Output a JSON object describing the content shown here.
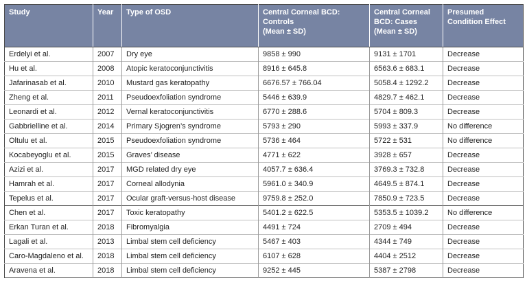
{
  "table": {
    "headers": {
      "study": "Study",
      "year": "Year",
      "type": "Type of OSD",
      "controls_l1": "Central Corneal BCD:",
      "controls_l2": "Controls",
      "controls_l3": "(Mean ± SD)",
      "cases_l1": "Central Corneal",
      "cases_l2": "BCD: Cases",
      "cases_l3": "(Mean ± SD)",
      "effect_l1": "Presumed",
      "effect_l2": "Condition Effect"
    },
    "rows": [
      {
        "study": "Erdelyi et al.",
        "year": "2007",
        "type": "Dry eye",
        "controls": "9858 ± 990",
        "cases": "9131 ± 1701",
        "effect": "Decrease"
      },
      {
        "study": "Hu et al.",
        "year": "2008",
        "type": "Atopic keratoconjunctivitis",
        "controls": "8916 ± 645.8",
        "cases": "6563.6 ± 683.1",
        "effect": "Decrease"
      },
      {
        "study": "Jafarinasab et al.",
        "year": "2010",
        "type": "Mustard gas keratopathy",
        "controls": "6676.57 ± 766.04",
        "cases": "5058.4 ± 1292.2",
        "effect": "Decrease"
      },
      {
        "study": "Zheng et al.",
        "year": "2011",
        "type": "Pseudoexfoliation syndrome",
        "controls": "5446 ± 639.9",
        "cases": "4829.7 ± 462.1",
        "effect": "Decrease"
      },
      {
        "study": "Leonardi et al.",
        "year": "2012",
        "type": "Vernal keratoconjunctivitis",
        "controls": "6770 ± 288.6",
        "cases": "5704 ± 809.3",
        "effect": "Decrease"
      },
      {
        "study": "Gabbrielline et al.",
        "year": "2014",
        "type": "Primary Sjogren’s syndrome",
        "controls": "5793 ± 290",
        "cases": "5993 ± 337.9",
        "effect": "No difference"
      },
      {
        "study": "Oltulu et al.",
        "year": "2015",
        "type": "Pseudoexfoliation syndrome",
        "controls": "5736 ± 464",
        "cases": "5722 ± 531",
        "effect": "No difference"
      },
      {
        "study": "Kocabeyoglu et al.",
        "year": "2015",
        "type": "Graves’ disease",
        "controls": "4771 ± 622",
        "cases": "3928 ± 657",
        "effect": "Decrease"
      },
      {
        "study": "Azizi et al.",
        "year": "2017",
        "type": "MGD related dry eye",
        "controls": "4057.7 ± 636.4",
        "cases": "3769.3 ± 732.8",
        "effect": "Decrease"
      },
      {
        "study": "Hamrah et al.",
        "year": "2017",
        "type": "Corneal allodynia",
        "controls": "5961.0 ± 340.9",
        "cases": "4649.5 ± 874.1",
        "effect": "Decrease"
      },
      {
        "study": "Tepelus et al.",
        "year": "2017",
        "type": "Ocular graft-versus-host disease",
        "controls": "9759.8 ± 252.0",
        "cases": "7850.9 ± 723.5",
        "effect": "Decrease"
      },
      {
        "study": "Chen et al.",
        "year": "2017",
        "type": "Toxic keratopathy",
        "controls": "5401.2 ± 622.5",
        "cases": "5353.5 ± 1039.2",
        "effect": "No difference"
      },
      {
        "study": "Erkan Turan et al.",
        "year": "2018",
        "type": "Fibromyalgia",
        "controls": "4491 ± 724",
        "cases": "2709 ± 494",
        "effect": "Decrease"
      },
      {
        "study": "Lagali et al.",
        "year": "2013",
        "type": "Limbal stem cell deficiency",
        "controls": "5467 ± 403",
        "cases": "4344 ± 749",
        "effect": "Decrease"
      },
      {
        "study": "Caro-Magdaleno et al.",
        "year": "2018",
        "type": "Limbal stem cell deficiency",
        "controls": "6107 ± 628",
        "cases": "4404 ± 2512",
        "effect": "Decrease"
      },
      {
        "study": "Aravena et al.",
        "year": "2018",
        "type": "Limbal stem cell deficiency",
        "controls": "9252 ± 445",
        "cases": "5387 ± 2798",
        "effect": "Decrease"
      }
    ]
  },
  "colors": {
    "header_bg": "#7784a3",
    "header_text": "#ffffff",
    "body_text": "#222222"
  }
}
